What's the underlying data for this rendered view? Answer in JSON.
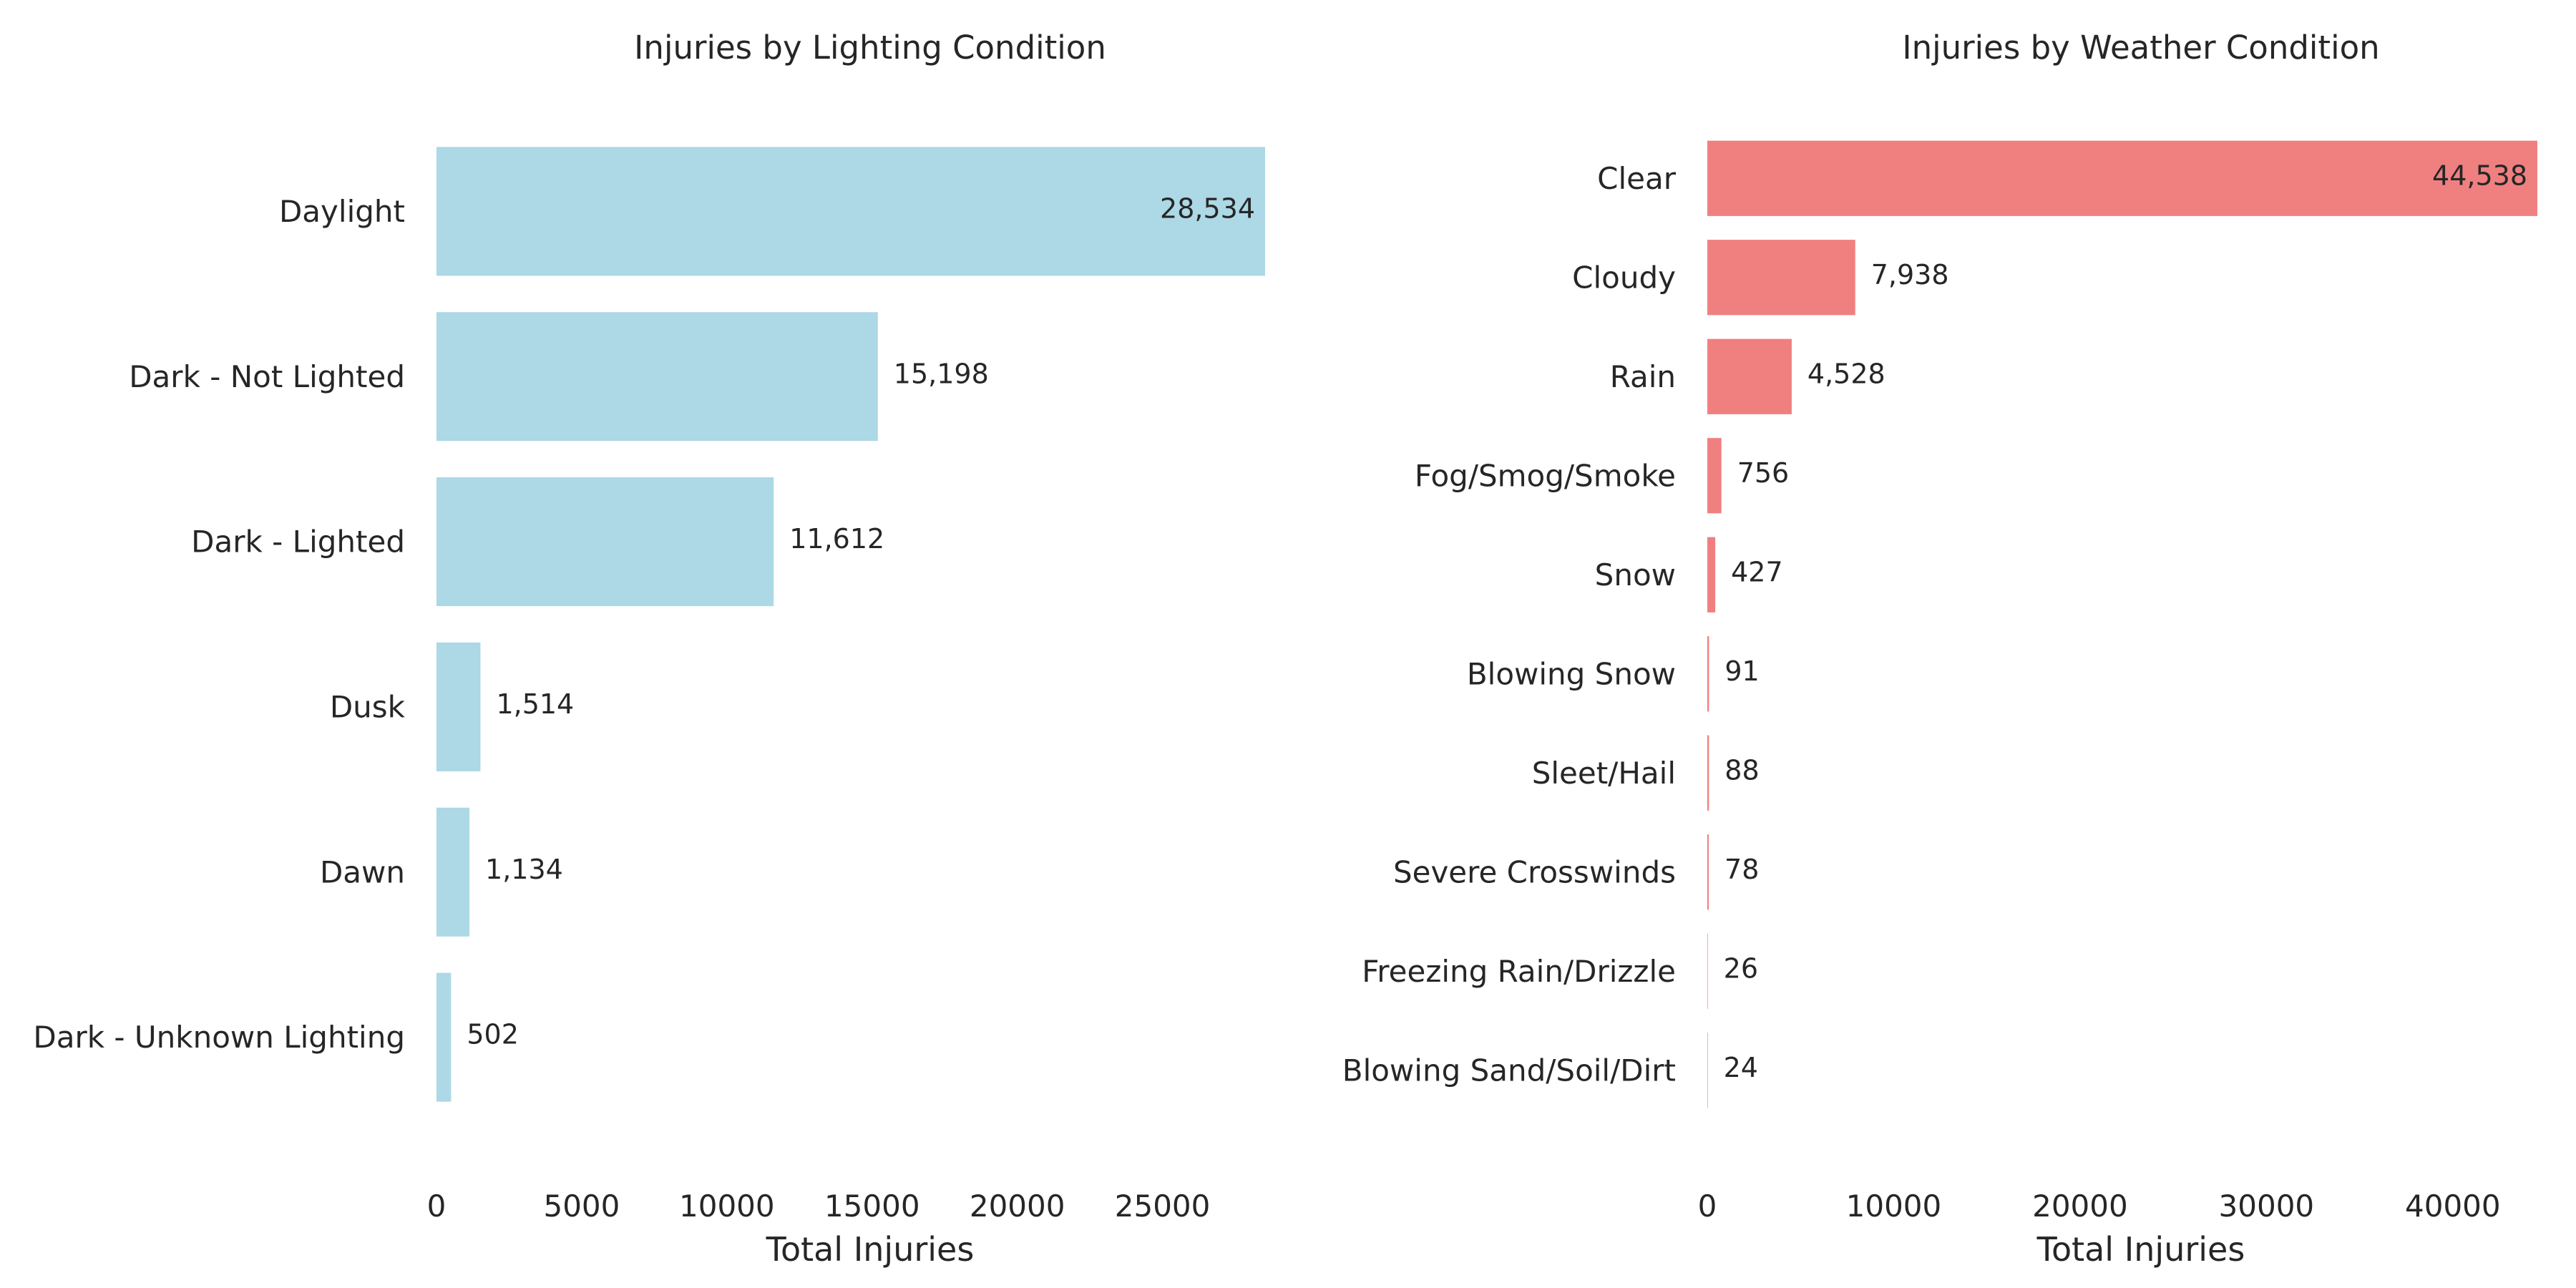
{
  "chart_data": [
    {
      "type": "bar",
      "orientation": "horizontal",
      "title": "Injuries by Lighting Condition",
      "xlabel": "Total Injuries",
      "ylabel": "",
      "categories": [
        "Daylight",
        "Dark - Not Lighted",
        "Dark - Lighted",
        "Dusk",
        "Dawn",
        "Dark - Unknown Lighting"
      ],
      "values": [
        28534,
        15198,
        11612,
        1514,
        1134,
        502
      ],
      "value_labels": [
        "28,534",
        "15,198",
        "11,612",
        "1,514",
        "1,134",
        "502"
      ],
      "xticks": [
        "0",
        "5000",
        "10000",
        "15000",
        "20000",
        "25000"
      ],
      "xtick_values": [
        0,
        5000,
        10000,
        15000,
        20000,
        25000
      ],
      "xlim": [
        0,
        28534
      ],
      "color": "#add8e6",
      "grid": false,
      "legend": "none"
    },
    {
      "type": "bar",
      "orientation": "horizontal",
      "title": "Injuries by Weather Condition",
      "xlabel": "Total Injuries",
      "ylabel": "",
      "categories": [
        "Clear",
        "Cloudy",
        "Rain",
        "Fog/Smog/Smoke",
        "Snow",
        "Blowing Snow",
        "Sleet/Hail",
        "Severe Crosswinds",
        "Freezing Rain/Drizzle",
        "Blowing Sand/Soil/Dirt"
      ],
      "values": [
        44538,
        7938,
        4528,
        756,
        427,
        91,
        88,
        78,
        26,
        24
      ],
      "value_labels": [
        "44,538",
        "7,938",
        "4,528",
        "756",
        "427",
        "91",
        "88",
        "78",
        "26",
        "24"
      ],
      "xticks": [
        "0",
        "10000",
        "20000",
        "30000",
        "40000"
      ],
      "xtick_values": [
        0,
        10000,
        20000,
        30000,
        40000
      ],
      "xlim": [
        0,
        44538
      ],
      "color": "#f08080",
      "grid": false,
      "legend": "none"
    }
  ]
}
